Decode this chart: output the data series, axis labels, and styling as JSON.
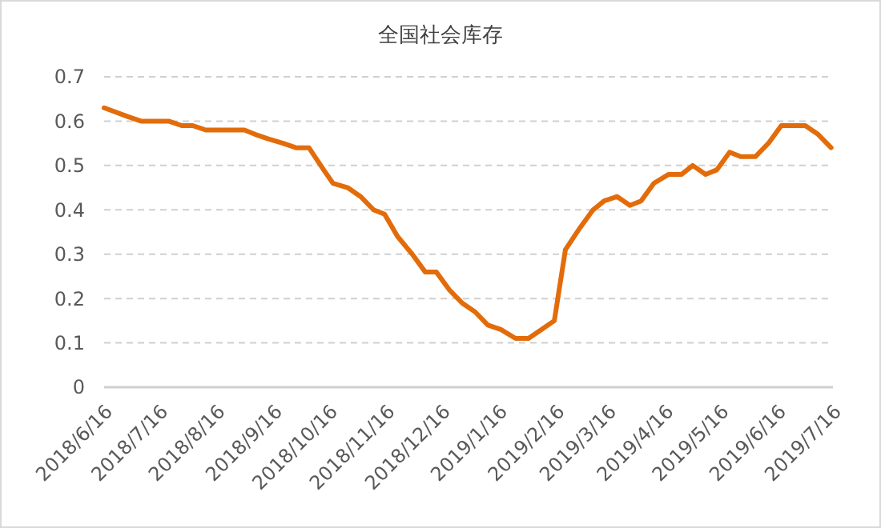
{
  "chart_data": {
    "type": "line",
    "title": "全国社会库存",
    "x": [
      "2018-06-16",
      "2018-06-29",
      "2018-07-06",
      "2018-07-21",
      "2018-07-28",
      "2018-08-03",
      "2018-08-10",
      "2018-08-31",
      "2018-09-06",
      "2018-09-13",
      "2018-09-21",
      "2018-09-28",
      "2018-10-05",
      "2018-10-13",
      "2018-10-18",
      "2018-10-26",
      "2018-11-02",
      "2018-11-09",
      "2018-11-15",
      "2018-11-22",
      "2018-11-30",
      "2018-12-07",
      "2018-12-13",
      "2018-12-20",
      "2018-12-27",
      "2019-01-03",
      "2019-01-10",
      "2019-01-17",
      "2019-01-25",
      "2019-02-01",
      "2019-02-08",
      "2019-02-15",
      "2019-02-21",
      "2019-03-01",
      "2019-03-08",
      "2019-03-14",
      "2019-03-21",
      "2019-03-28",
      "2019-04-03",
      "2019-04-10",
      "2019-04-18",
      "2019-04-25",
      "2019-05-01",
      "2019-05-08",
      "2019-05-14",
      "2019-05-21",
      "2019-05-27",
      "2019-06-04",
      "2019-06-11",
      "2019-06-18",
      "2019-06-26",
      "2019-07-01",
      "2019-07-08",
      "2019-07-15"
    ],
    "series": [
      {
        "color": "#e36c0a",
        "values": [
          0.63,
          0.61,
          0.6,
          0.6,
          0.59,
          0.59,
          0.58,
          0.58,
          0.57,
          0.56,
          0.55,
          0.54,
          0.54,
          0.49,
          0.46,
          0.45,
          0.43,
          0.4,
          0.39,
          0.34,
          0.3,
          0.26,
          0.26,
          0.22,
          0.19,
          0.17,
          0.14,
          0.13,
          0.11,
          0.11,
          0.13,
          0.15,
          0.31,
          0.36,
          0.4,
          0.42,
          0.43,
          0.41,
          0.42,
          0.46,
          0.48,
          0.48,
          0.5,
          0.48,
          0.49,
          0.53,
          0.52,
          0.52,
          0.55,
          0.59,
          0.59,
          0.59,
          0.57,
          0.54
        ]
      }
    ],
    "xlim": [
      "2018-06-16",
      "2019-07-16"
    ],
    "xticks": [
      {
        "value": "2018-06-16",
        "label": "2018/6/16"
      },
      {
        "value": "2018-07-16",
        "label": "2018/7/16"
      },
      {
        "value": "2018-08-16",
        "label": "2018/8/16"
      },
      {
        "value": "2018-09-16",
        "label": "2018/9/16"
      },
      {
        "value": "2018-10-16",
        "label": "2018/10/16"
      },
      {
        "value": "2018-11-16",
        "label": "2018/11/16"
      },
      {
        "value": "2018-12-16",
        "label": "2018/12/16"
      },
      {
        "value": "2019-01-16",
        "label": "2019/1/16"
      },
      {
        "value": "2019-02-16",
        "label": "2019/2/16"
      },
      {
        "value": "2019-03-16",
        "label": "2019/3/16"
      },
      {
        "value": "2019-04-16",
        "label": "2019/4/16"
      },
      {
        "value": "2019-05-16",
        "label": "2019/5/16"
      },
      {
        "value": "2019-06-16",
        "label": "2019/6/16"
      },
      {
        "value": "2019-07-16",
        "label": "2019/7/16"
      }
    ],
    "ylim": [
      0,
      0.7
    ],
    "yticks": [
      {
        "value": 0,
        "label": "0"
      },
      0.1,
      0.2,
      0.3,
      0.4,
      0.5,
      0.6,
      0.7
    ],
    "grid": "y",
    "marker": "none",
    "line_style": "solid"
  }
}
